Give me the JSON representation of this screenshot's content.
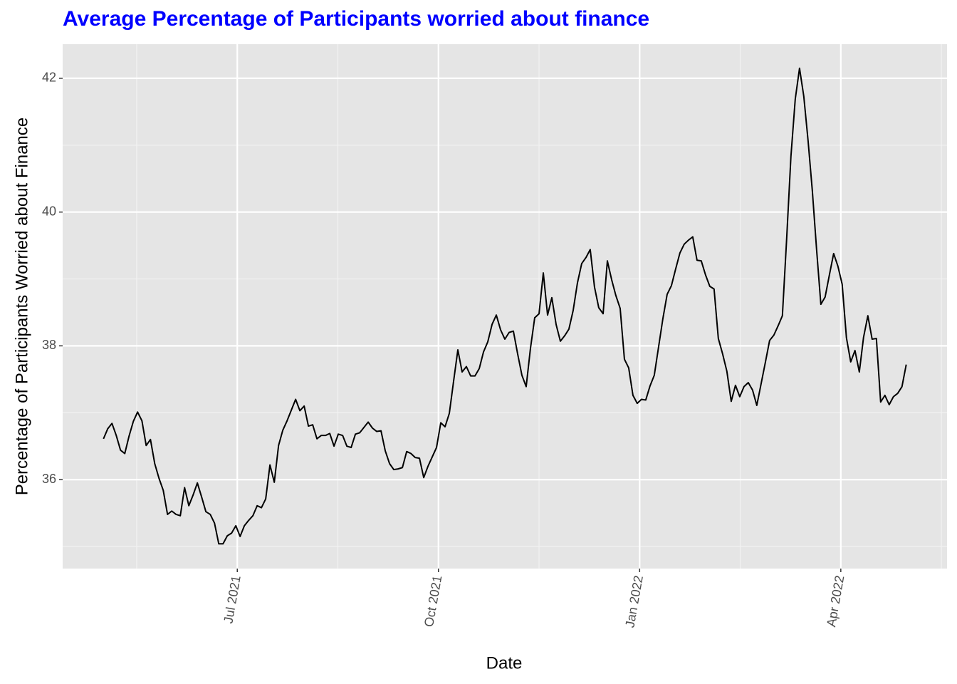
{
  "chart_data": {
    "type": "line",
    "title": "Average Percentage of Participants worried about finance",
    "title_color": "#0000ff",
    "x_label": "Date",
    "y_label": "Percentage of Participants Worried about Finance",
    "color": "#000000",
    "background": "#e5e5e5",
    "grid": true,
    "xlim": [
      2021.283,
      2022.382
    ],
    "ylim": [
      34.67,
      42.51
    ],
    "xticks": [
      {
        "value": 2021.5,
        "label": "Jul 2021"
      },
      {
        "value": 2021.75,
        "label": "Oct 2021"
      },
      {
        "value": 2022.0,
        "label": "Jan 2022"
      },
      {
        "value": 2022.25,
        "label": "Apr 2022"
      }
    ],
    "yticks": [
      36,
      38,
      40,
      42
    ],
    "x": [
      2021.3337,
      2021.339,
      2021.3443,
      2021.3496,
      2021.3549,
      2021.3602,
      2021.3655,
      2021.3708,
      2021.3761,
      2021.3815,
      2021.3868,
      2021.3921,
      2021.3974,
      2021.4027,
      2021.408,
      2021.4133,
      2021.4186,
      2021.4239,
      2021.4292,
      2021.4345,
      2021.4398,
      2021.4451,
      2021.4504,
      2021.4557,
      2021.461,
      2021.4664,
      2021.4717,
      2021.477,
      2021.4823,
      2021.4876,
      2021.4929,
      2021.4982,
      2021.5035,
      2021.5088,
      2021.5141,
      2021.5194,
      2021.5247,
      2021.53,
      2021.5353,
      2021.5406,
      2021.546,
      2021.5513,
      2021.5566,
      2021.5619,
      2021.5672,
      2021.5725,
      2021.5778,
      2021.5831,
      2021.5884,
      2021.5937,
      2021.599,
      2021.6043,
      2021.6096,
      2021.6149,
      2021.6202,
      2021.6255,
      2021.6309,
      2021.6362,
      2021.6415,
      2021.6468,
      2021.6521,
      2021.6574,
      2021.6627,
      2021.668,
      2021.6733,
      2021.6786,
      2021.6839,
      2021.6892,
      2021.6945,
      2021.6998,
      2021.7052,
      2021.7105,
      2021.7158,
      2021.7211,
      2021.7264,
      2021.7317,
      2021.737,
      2021.7423,
      2021.7476,
      2021.7529,
      2021.7582,
      2021.7635,
      2021.7688,
      2021.7741,
      2021.7794,
      2021.7847,
      2021.79,
      2021.7954,
      2021.8007,
      2021.806,
      2021.8113,
      2021.8166,
      2021.8219,
      2021.8272,
      2021.8325,
      2021.8378,
      2021.8431,
      2021.8484,
      2021.8537,
      2021.859,
      2021.8643,
      2021.8696,
      2021.875,
      2021.8803,
      2021.8856,
      2021.8909,
      2021.8962,
      2021.9015,
      2021.9068,
      2021.9121,
      2021.9174,
      2021.9227,
      2021.928,
      2021.9333,
      2021.9386,
      2021.9439,
      2021.9492,
      2021.9546,
      2021.9599,
      2021.9652,
      2021.9705,
      2021.9758,
      2021.9811,
      2021.9864,
      2021.9917,
      2021.997,
      2022.0023,
      2022.0076,
      2022.0129,
      2022.0182,
      2022.0235,
      2022.0288,
      2022.0342,
      2022.0395,
      2022.0448,
      2022.0501,
      2022.0554,
      2022.0607,
      2022.066,
      2022.0713,
      2022.0766,
      2022.0819,
      2022.0872,
      2022.0925,
      2022.0978,
      2022.1031,
      2022.1084,
      2022.1138,
      2022.1191,
      2022.1244,
      2022.1297,
      2022.135,
      2022.1403,
      2022.1456,
      2022.1509,
      2022.1562,
      2022.1615,
      2022.1668,
      2022.1721,
      2022.1774,
      2022.1827,
      2022.188,
      2022.1934,
      2022.1987,
      2022.204,
      2022.2093,
      2022.2146,
      2022.2199,
      2022.2252,
      2022.2305,
      2022.2358,
      2022.2411,
      2022.2464,
      2022.2517,
      2022.257,
      2022.2623,
      2022.2676,
      2022.273,
      2022.2783,
      2022.2836,
      2022.2889,
      2022.2942,
      2022.2995,
      2022.3048,
      2022.3101,
      2022.3154,
      2022.3207,
      2022.326,
      2022.3313
    ],
    "values": [
      36.61,
      36.76,
      36.84,
      36.66,
      36.44,
      36.39,
      36.65,
      36.87,
      37.01,
      36.88,
      36.51,
      36.6,
      36.24,
      36.02,
      35.84,
      35.48,
      35.53,
      35.48,
      35.46,
      35.88,
      35.61,
      35.77,
      35.95,
      35.74,
      35.52,
      35.48,
      35.35,
      35.04,
      35.04,
      35.16,
      35.2,
      35.31,
      35.15,
      35.31,
      35.39,
      35.46,
      35.61,
      35.58,
      35.71,
      36.22,
      35.96,
      36.51,
      36.74,
      36.88,
      37.04,
      37.2,
      37.03,
      37.1,
      36.8,
      36.82,
      36.61,
      36.66,
      36.66,
      36.69,
      36.5,
      36.68,
      36.66,
      36.5,
      36.48,
      36.68,
      36.7,
      36.78,
      36.86,
      36.77,
      36.72,
      36.73,
      36.43,
      36.24,
      36.15,
      36.16,
      36.18,
      36.42,
      36.39,
      36.33,
      36.32,
      36.03,
      36.2,
      36.34,
      36.48,
      36.85,
      36.79,
      36.99,
      37.47,
      37.94,
      37.61,
      37.69,
      37.55,
      37.55,
      37.66,
      37.91,
      38.06,
      38.32,
      38.46,
      38.24,
      38.1,
      38.2,
      38.22,
      37.88,
      37.56,
      37.39,
      37.96,
      38.42,
      38.48,
      39.09,
      38.46,
      38.72,
      38.32,
      38.07,
      38.15,
      38.25,
      38.53,
      38.94,
      39.23,
      39.32,
      39.44,
      38.88,
      38.57,
      38.48,
      39.27,
      38.99,
      38.75,
      38.56,
      37.8,
      37.67,
      37.26,
      37.14,
      37.2,
      37.19,
      37.4,
      37.56,
      37.98,
      38.4,
      38.77,
      38.9,
      39.15,
      39.39,
      39.52,
      39.58,
      39.63,
      39.28,
      39.27,
      39.06,
      38.89,
      38.85,
      38.11,
      37.88,
      37.62,
      37.17,
      37.41,
      37.24,
      37.39,
      37.45,
      37.34,
      37.11,
      37.43,
      37.75,
      38.08,
      38.16,
      38.3,
      38.45,
      39.6,
      40.83,
      41.69,
      42.15,
      41.73,
      41.07,
      40.32,
      39.44,
      38.62,
      38.73,
      39.06,
      39.38,
      39.19,
      38.92,
      38.12,
      37.76,
      37.93,
      37.61,
      38.13,
      38.45,
      38.1,
      38.11,
      37.16,
      37.26,
      37.12,
      37.24,
      37.29,
      37.39,
      37.72
    ]
  }
}
